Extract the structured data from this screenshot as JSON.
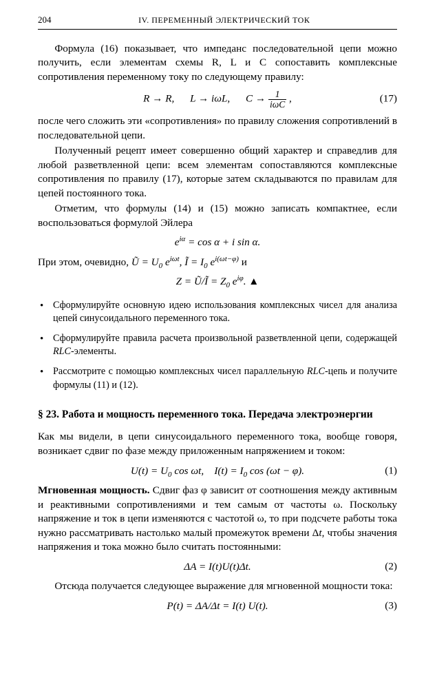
{
  "header": {
    "page": "204",
    "title": "IV. ПЕРЕМЕННЫЙ ЭЛЕКТРИЧЕСКИЙ ТОК"
  },
  "para1": "Формула (16) показывает, что импеданс последовательной цепи можно получить, если элементам схемы R, L и C сопоставить комплексные сопротивления переменному току по следующему правилу:",
  "eq17": {
    "a": "R → R,",
    "b": "L → iωL,",
    "c_pre": "C → ",
    "c_num": "1",
    "c_den": "iωC",
    "c_post": " ,",
    "num": "(17)"
  },
  "para2": "после чего сложить эти «сопротивления» по правилу сложения сопротивлений в последовательной цепи.",
  "para3": "Полученный рецепт имеет совершенно общий характер и справедлив для любой разветвленной цепи: всем элементам сопоставляются комплексные сопротивления по правилу (17), которые затем складываются по правилам для цепей постоянного тока.",
  "para4": "Отметим, что формулы (14) и (15) можно записать компактнее, если воспользоваться формулой Эйлера",
  "eq_euler": "e<sup>iα</sup> = cos α + i sin α.",
  "para5_pre": "При этом, очевидно, ",
  "para5_eq": "Ũ = U<sub>0</sub> e<sup>iωt</sup>,  Ĩ = I<sub>0</sub> e<sup>i(ωt−φ)</sup>",
  "para5_post": "  и",
  "eq_z": "Z = Ũ/Ĩ = Z<sub>0</sub> e<sup>iφ</sup>.  ▲",
  "bullets": [
    "Сформулируйте основную идею использования комплексных чисел для анализа цепей синусоидального переменного тока.",
    "Сформулируйте правила расчета произвольной разветвленной цепи, содержащей <span class=\"ital\">RLC</span>-элементы.",
    "Рассмотрите с помощью комплексных чисел параллельную <span class=\"ital\">RLC</span>-цепь и получите формулы (11) и (12)."
  ],
  "section": "§ 23. Работа и мощность переменного тока. Передача электроэнергии",
  "para6": "Как мы видели, в цепи синусоидального переменного тока, вообще говоря, возникает сдвиг по фазе между приложенным напряжением и током:",
  "eq1": {
    "txt": "U(t) = U<sub>0</sub> cos ωt,&nbsp;&nbsp;&nbsp;&nbsp;I(t) = I<sub>0</sub> cos (ωt − φ).",
    "num": "(1)"
  },
  "para7": "<b>Мгновенная мощность.</b> Сдвиг фаз φ зависит от соотношения между активным и реактивными сопротивлениями и тем самым от частоты ω. Поскольку напряжение и ток в цепи изменяются с частотой ω, то при подсчете работы тока нужно рассматривать настолько малый промежуток времени Δ<span class=\"ital\">t</span>, чтобы значения напряжения и тока можно было считать постоянными:",
  "eq2": {
    "txt": "ΔA = I(t)U(t)Δt.",
    "num": "(2)"
  },
  "para8": "Отсюда получается следующее выражение для мгновенной мощности тока:",
  "eq3": {
    "txt": "P(t) = ΔA/Δt = I(t) U(t).",
    "num": "(3)"
  }
}
